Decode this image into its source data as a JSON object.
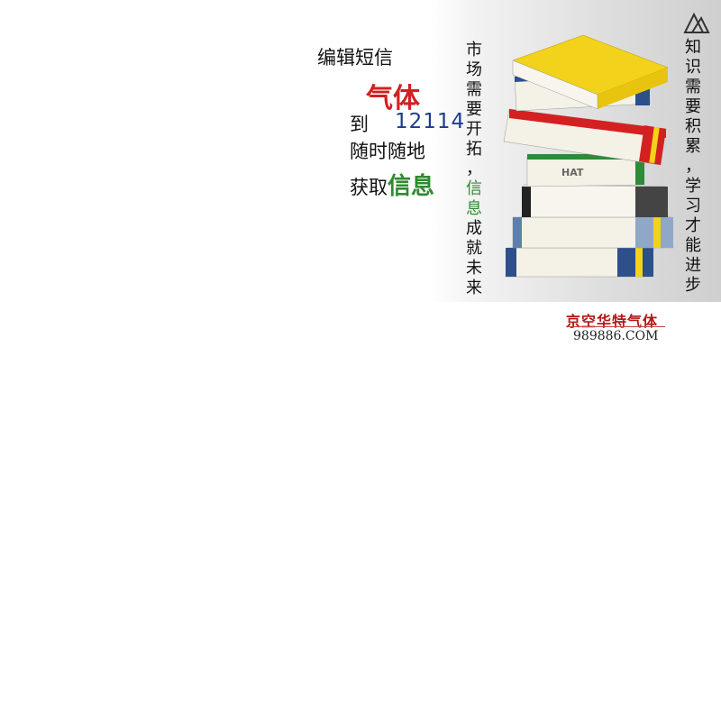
{
  "promo": {
    "line1": "编辑短信",
    "line2": "气体",
    "line3_prefix": "到",
    "line3_number": "12114",
    "line4": "随时随地",
    "line5_prefix": "获取",
    "line5_highlight": "信息"
  },
  "column_left": [
    "市",
    "场",
    "需",
    "要",
    "开",
    "拓",
    "，",
    "信",
    "息",
    "成",
    "就",
    "未",
    "来"
  ],
  "column_right": [
    "知",
    "识",
    "需",
    "要",
    "积",
    "累",
    "，",
    "学",
    "习",
    "才",
    "能",
    "进",
    "步"
  ],
  "book_badge": "HAT",
  "footer": {
    "brand": "京空华特气体",
    "url": "989886.COM"
  },
  "colors": {
    "red": "#d42020",
    "blue": "#1d3c8f",
    "green": "#2e8b2e",
    "yellow": "#f2d21a"
  }
}
